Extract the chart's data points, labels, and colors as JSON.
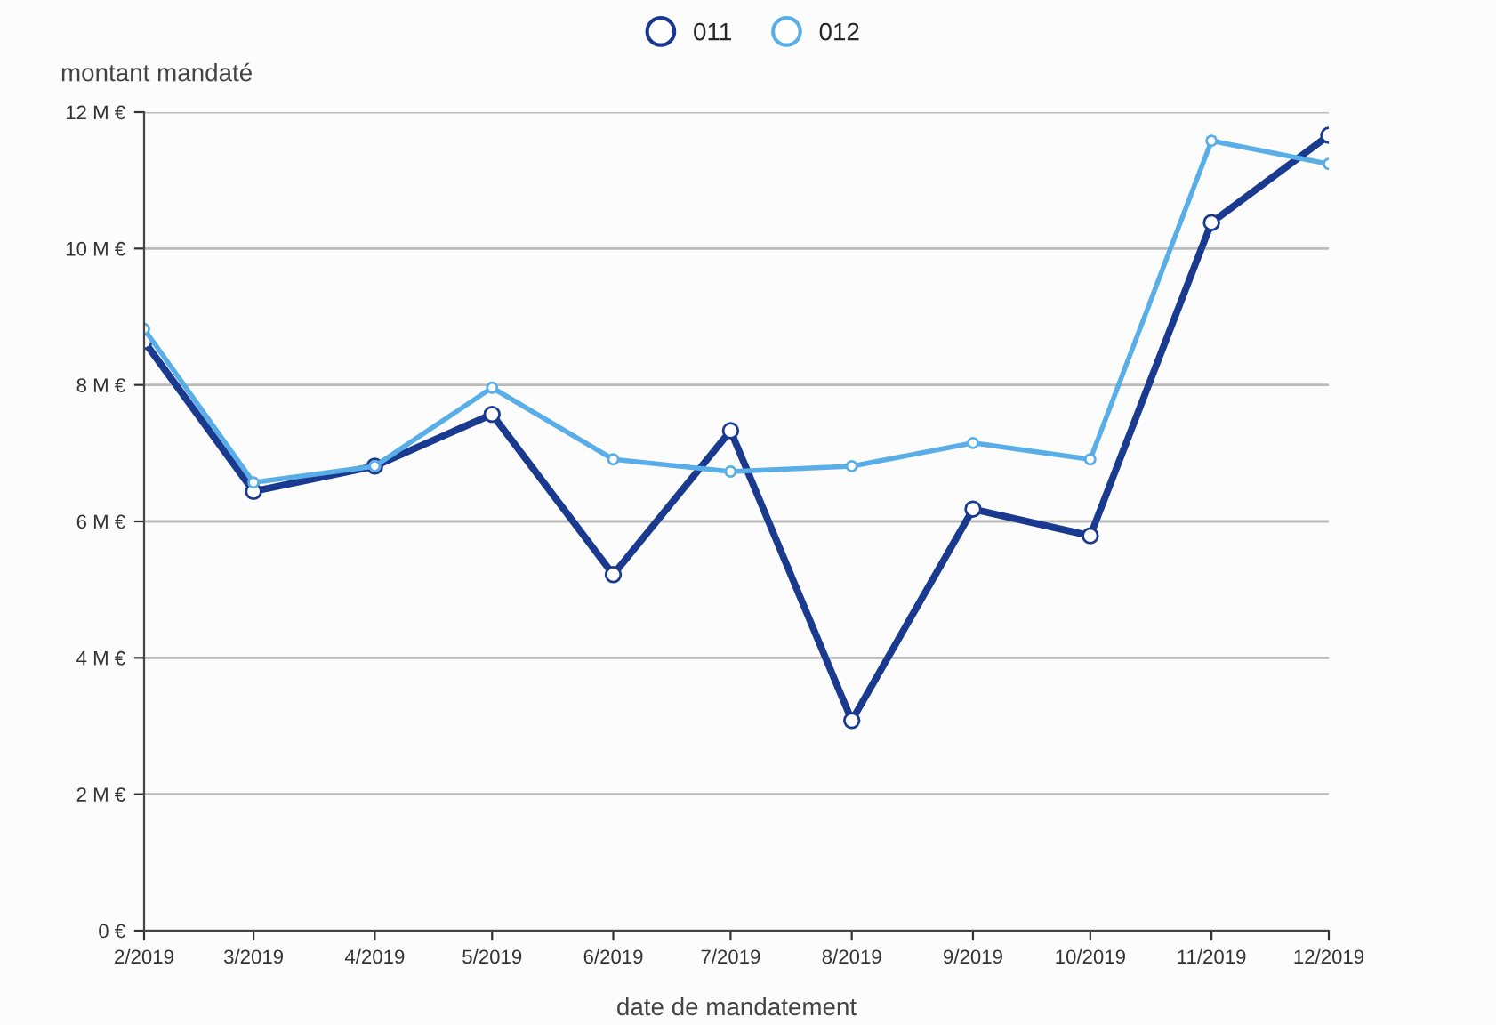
{
  "chart_data": {
    "type": "line",
    "xlabel": "date de mandatement",
    "ylabel": "montant mandaté",
    "x": [
      "2019-02",
      "2019-03",
      "2019-04",
      "2019-05",
      "2019-06",
      "2019-07",
      "2019-08",
      "2019-09",
      "2019-10",
      "2019-11",
      "2019-12"
    ],
    "series": [
      {
        "name": "011",
        "color": "#1a3a8f",
        "values": [
          8.64,
          6.44,
          6.81,
          7.57,
          5.22,
          7.33,
          3.08,
          6.18,
          5.79,
          10.38,
          11.66
        ]
      },
      {
        "name": "012",
        "color": "#5aaee8",
        "values": [
          8.82,
          6.57,
          6.81,
          7.96,
          6.91,
          6.73,
          6.81,
          7.15,
          6.91,
          11.58,
          11.24
        ]
      }
    ],
    "xlim": [
      "2019-02",
      "2019-12"
    ],
    "xticks": [
      {
        "value": "2019-02",
        "label": "2/2019"
      },
      {
        "value": "2019-03",
        "label": "3/2019"
      },
      {
        "value": "2019-04",
        "label": "4/2019"
      },
      {
        "value": "2019-05",
        "label": "5/2019"
      },
      {
        "value": "2019-06",
        "label": "6/2019"
      },
      {
        "value": "2019-07",
        "label": "7/2019"
      },
      {
        "value": "2019-08",
        "label": "8/2019"
      },
      {
        "value": "2019-09",
        "label": "9/2019"
      },
      {
        "value": "2019-10",
        "label": "10/2019"
      },
      {
        "value": "2019-11",
        "label": "11/2019"
      },
      {
        "value": "2019-12",
        "label": "12/2019"
      }
    ],
    "ylim": [
      0,
      12
    ],
    "yticks": [
      {
        "value": 0,
        "label": "0 €"
      },
      {
        "value": 2,
        "label": "2 M €"
      },
      {
        "value": 4,
        "label": "4 M €"
      },
      {
        "value": 6,
        "label": "6 M €"
      },
      {
        "value": 8,
        "label": "8 M €"
      },
      {
        "value": 10,
        "label": "10 M €"
      },
      {
        "value": 12,
        "label": "12 M €"
      }
    ],
    "grid": "y",
    "legend": "top",
    "marker": "circle",
    "line_style": "solid"
  }
}
